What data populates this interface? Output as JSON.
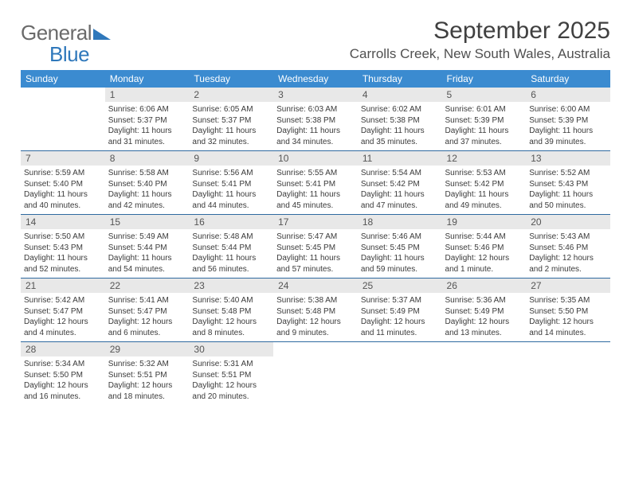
{
  "logo": {
    "text1": "General",
    "text2": "Blue"
  },
  "title": "September 2025",
  "location": "Carrolls Creek, New South Wales, Australia",
  "colors": {
    "header_bg": "#3b8bd0",
    "header_text": "#ffffff",
    "daynum_bg": "#e8e8e8",
    "logo_blue": "#2f78bb",
    "week_border": "#2f6aa0"
  },
  "day_headers": [
    "Sunday",
    "Monday",
    "Tuesday",
    "Wednesday",
    "Thursday",
    "Friday",
    "Saturday"
  ],
  "weeks": [
    [
      {
        "num": "",
        "lines": [
          "",
          "",
          "",
          ""
        ]
      },
      {
        "num": "1",
        "lines": [
          "Sunrise: 6:06 AM",
          "Sunset: 5:37 PM",
          "Daylight: 11 hours",
          "and 31 minutes."
        ]
      },
      {
        "num": "2",
        "lines": [
          "Sunrise: 6:05 AM",
          "Sunset: 5:37 PM",
          "Daylight: 11 hours",
          "and 32 minutes."
        ]
      },
      {
        "num": "3",
        "lines": [
          "Sunrise: 6:03 AM",
          "Sunset: 5:38 PM",
          "Daylight: 11 hours",
          "and 34 minutes."
        ]
      },
      {
        "num": "4",
        "lines": [
          "Sunrise: 6:02 AM",
          "Sunset: 5:38 PM",
          "Daylight: 11 hours",
          "and 35 minutes."
        ]
      },
      {
        "num": "5",
        "lines": [
          "Sunrise: 6:01 AM",
          "Sunset: 5:39 PM",
          "Daylight: 11 hours",
          "and 37 minutes."
        ]
      },
      {
        "num": "6",
        "lines": [
          "Sunrise: 6:00 AM",
          "Sunset: 5:39 PM",
          "Daylight: 11 hours",
          "and 39 minutes."
        ]
      }
    ],
    [
      {
        "num": "7",
        "lines": [
          "Sunrise: 5:59 AM",
          "Sunset: 5:40 PM",
          "Daylight: 11 hours",
          "and 40 minutes."
        ]
      },
      {
        "num": "8",
        "lines": [
          "Sunrise: 5:58 AM",
          "Sunset: 5:40 PM",
          "Daylight: 11 hours",
          "and 42 minutes."
        ]
      },
      {
        "num": "9",
        "lines": [
          "Sunrise: 5:56 AM",
          "Sunset: 5:41 PM",
          "Daylight: 11 hours",
          "and 44 minutes."
        ]
      },
      {
        "num": "10",
        "lines": [
          "Sunrise: 5:55 AM",
          "Sunset: 5:41 PM",
          "Daylight: 11 hours",
          "and 45 minutes."
        ]
      },
      {
        "num": "11",
        "lines": [
          "Sunrise: 5:54 AM",
          "Sunset: 5:42 PM",
          "Daylight: 11 hours",
          "and 47 minutes."
        ]
      },
      {
        "num": "12",
        "lines": [
          "Sunrise: 5:53 AM",
          "Sunset: 5:42 PM",
          "Daylight: 11 hours",
          "and 49 minutes."
        ]
      },
      {
        "num": "13",
        "lines": [
          "Sunrise: 5:52 AM",
          "Sunset: 5:43 PM",
          "Daylight: 11 hours",
          "and 50 minutes."
        ]
      }
    ],
    [
      {
        "num": "14",
        "lines": [
          "Sunrise: 5:50 AM",
          "Sunset: 5:43 PM",
          "Daylight: 11 hours",
          "and 52 minutes."
        ]
      },
      {
        "num": "15",
        "lines": [
          "Sunrise: 5:49 AM",
          "Sunset: 5:44 PM",
          "Daylight: 11 hours",
          "and 54 minutes."
        ]
      },
      {
        "num": "16",
        "lines": [
          "Sunrise: 5:48 AM",
          "Sunset: 5:44 PM",
          "Daylight: 11 hours",
          "and 56 minutes."
        ]
      },
      {
        "num": "17",
        "lines": [
          "Sunrise: 5:47 AM",
          "Sunset: 5:45 PM",
          "Daylight: 11 hours",
          "and 57 minutes."
        ]
      },
      {
        "num": "18",
        "lines": [
          "Sunrise: 5:46 AM",
          "Sunset: 5:45 PM",
          "Daylight: 11 hours",
          "and 59 minutes."
        ]
      },
      {
        "num": "19",
        "lines": [
          "Sunrise: 5:44 AM",
          "Sunset: 5:46 PM",
          "Daylight: 12 hours",
          "and 1 minute."
        ]
      },
      {
        "num": "20",
        "lines": [
          "Sunrise: 5:43 AM",
          "Sunset: 5:46 PM",
          "Daylight: 12 hours",
          "and 2 minutes."
        ]
      }
    ],
    [
      {
        "num": "21",
        "lines": [
          "Sunrise: 5:42 AM",
          "Sunset: 5:47 PM",
          "Daylight: 12 hours",
          "and 4 minutes."
        ]
      },
      {
        "num": "22",
        "lines": [
          "Sunrise: 5:41 AM",
          "Sunset: 5:47 PM",
          "Daylight: 12 hours",
          "and 6 minutes."
        ]
      },
      {
        "num": "23",
        "lines": [
          "Sunrise: 5:40 AM",
          "Sunset: 5:48 PM",
          "Daylight: 12 hours",
          "and 8 minutes."
        ]
      },
      {
        "num": "24",
        "lines": [
          "Sunrise: 5:38 AM",
          "Sunset: 5:48 PM",
          "Daylight: 12 hours",
          "and 9 minutes."
        ]
      },
      {
        "num": "25",
        "lines": [
          "Sunrise: 5:37 AM",
          "Sunset: 5:49 PM",
          "Daylight: 12 hours",
          "and 11 minutes."
        ]
      },
      {
        "num": "26",
        "lines": [
          "Sunrise: 5:36 AM",
          "Sunset: 5:49 PM",
          "Daylight: 12 hours",
          "and 13 minutes."
        ]
      },
      {
        "num": "27",
        "lines": [
          "Sunrise: 5:35 AM",
          "Sunset: 5:50 PM",
          "Daylight: 12 hours",
          "and 14 minutes."
        ]
      }
    ],
    [
      {
        "num": "28",
        "lines": [
          "Sunrise: 5:34 AM",
          "Sunset: 5:50 PM",
          "Daylight: 12 hours",
          "and 16 minutes."
        ]
      },
      {
        "num": "29",
        "lines": [
          "Sunrise: 5:32 AM",
          "Sunset: 5:51 PM",
          "Daylight: 12 hours",
          "and 18 minutes."
        ]
      },
      {
        "num": "30",
        "lines": [
          "Sunrise: 5:31 AM",
          "Sunset: 5:51 PM",
          "Daylight: 12 hours",
          "and 20 minutes."
        ]
      },
      {
        "num": "",
        "lines": [
          "",
          "",
          "",
          ""
        ]
      },
      {
        "num": "",
        "lines": [
          "",
          "",
          "",
          ""
        ]
      },
      {
        "num": "",
        "lines": [
          "",
          "",
          "",
          ""
        ]
      },
      {
        "num": "",
        "lines": [
          "",
          "",
          "",
          ""
        ]
      }
    ]
  ]
}
